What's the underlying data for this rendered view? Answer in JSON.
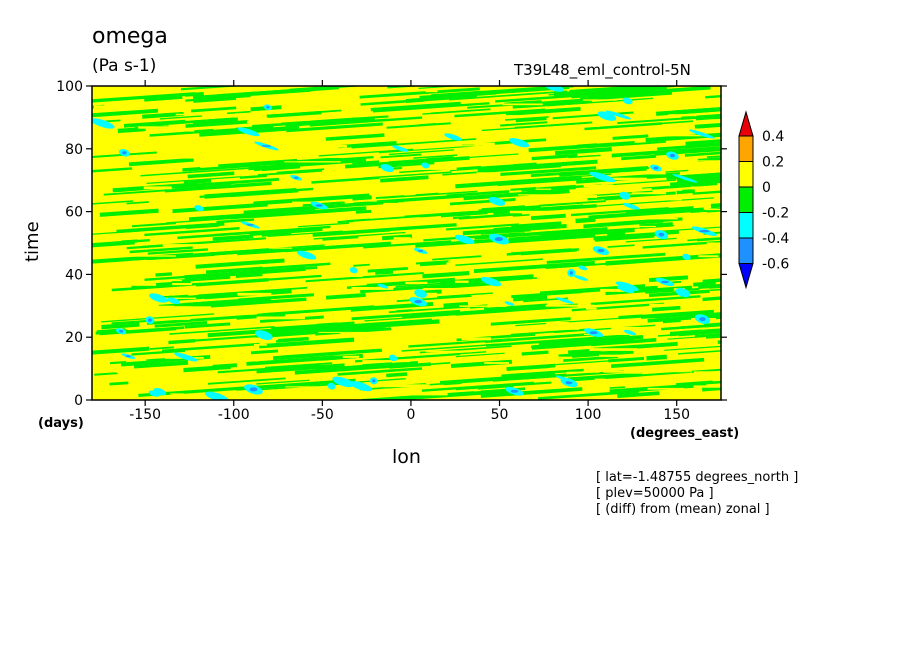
{
  "chart_data": {
    "type": "heatmap",
    "title": "omega",
    "units": "(Pa s-1)",
    "run_label": "T39L48_eml_control-5N",
    "xlabel": "lon",
    "ylabel": "time",
    "x_unit": "(degrees_east)",
    "y_unit": "(days)",
    "xlim": [
      -180,
      175
    ],
    "ylim": [
      0,
      100
    ],
    "x_ticks": [
      -150,
      -100,
      -50,
      0,
      50,
      100,
      150
    ],
    "x_tick_labels": [
      "-150",
      "-100",
      "-50",
      "0",
      "50",
      "100",
      "150"
    ],
    "y_ticks": [
      0,
      20,
      40,
      60,
      80,
      100
    ],
    "y_tick_labels": [
      "0",
      "20",
      "40",
      "60",
      "80",
      "100"
    ],
    "colorbar": {
      "levels": [
        "0.4",
        "0.2",
        "0",
        "-0.2",
        "-0.4",
        "-0.6"
      ],
      "colors": [
        "#e8000b",
        "#ffa500",
        "#ffff00",
        "#00ee00",
        "#00ffff",
        "#1e90ff",
        "#0000ff"
      ]
    },
    "field_description": "anomaly pattern of alternating positive (yellow) and slightly negative (green) streaks with scattered stronger negative (cyan/blue) patches tilted toward east with time",
    "notes": [
      "[ lat=-1.48755 degrees_north ]",
      "[ plev=50000 Pa ]",
      "[ (diff) from (mean) zonal ]"
    ]
  }
}
